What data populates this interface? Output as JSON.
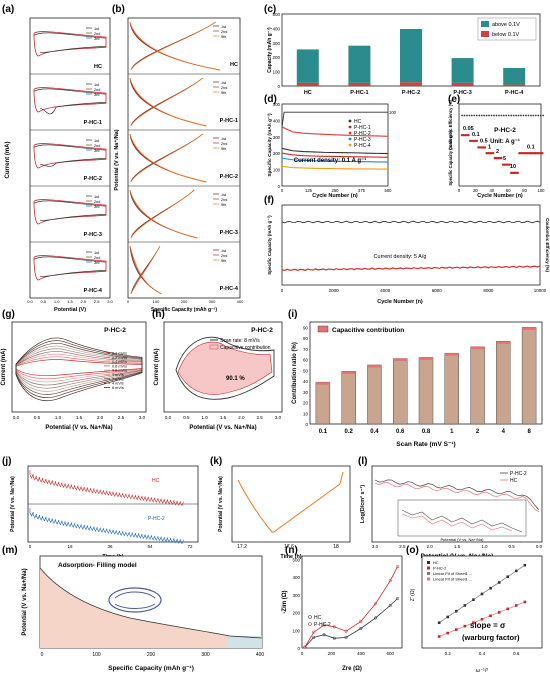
{
  "panel_labels": {
    "a": "(a)",
    "b": "(b)",
    "c": "(c)",
    "d": "(d)",
    "e": "(e)",
    "f": "(f)",
    "g": "(g)",
    "h": "(h)",
    "i": "(i)",
    "j": "(j)",
    "k": "(k)",
    "l": "(l)",
    "m": "(m)",
    "n": "(n)",
    "o": "(o)"
  },
  "samples": [
    "HC",
    "P-HC-1",
    "P-HC-2",
    "P-HC-3",
    "P-HC-4"
  ],
  "cycle_legend": [
    "1st",
    "2nd",
    "3rd"
  ],
  "cycle_legend_b": [
    "1st",
    "2nd",
    "5th"
  ],
  "colors": {
    "c1": "#333333",
    "c2": "#c62828",
    "c3": "#1565c0",
    "teal": "#2a8c8c",
    "red": "#d04040",
    "tan": "#c9a58f"
  },
  "a": {
    "ylabel": "Current (mA)",
    "xlabel": "Potential (V)",
    "xticks": [
      "0.0",
      "0.5",
      "1.0",
      "1.5",
      "2.0",
      "2.5",
      "3.0"
    ]
  },
  "b": {
    "ylabel": "Potential (V vs. Na⁺/Na)",
    "xlabel": "Specific Capacity (mAh g⁻¹)",
    "xticks": [
      "0",
      "100",
      "200",
      "300",
      "400"
    ]
  },
  "c": {
    "ylabel": "Capacity (mAh g⁻¹)",
    "legend": [
      "above 0.1V",
      "below 0.1V"
    ],
    "yticks": [
      "0",
      "100",
      "200",
      "300",
      "400",
      "500"
    ]
  },
  "d": {
    "xlabel": "Cycle Number (n)",
    "ylabel": "Specific Capacity (mAh g⁻¹)",
    "ylabel2": "Coulombic Efficiency (%)",
    "annotation": "Current density: 0.1 A g⁻¹",
    "xticks": [
      "0",
      "125",
      "250",
      "375",
      "500"
    ],
    "yticks": [
      "0",
      "100",
      "200",
      "300",
      "400",
      "500"
    ],
    "y2top": "100"
  },
  "e": {
    "title": "P-HC-2",
    "unit": "Unit: A g⁻¹",
    "xlabel": "Cycle Number (n)",
    "ylabel": "Specific Capacity (mAh g⁻¹)",
    "ylabel2": "Coulombic Efficiency (%)",
    "rate_labels": [
      "0.05",
      "0.1",
      "0.5",
      "1",
      "2",
      "5",
      "10",
      "0.1"
    ],
    "xticks": [
      "0",
      "20",
      "40",
      "60",
      "80",
      "100"
    ]
  },
  "f": {
    "annotation": "Current density: 5 A/g",
    "xlabel": "Cycle Number (n)",
    "ylabel": "Specific Capacity (mAh g⁻¹)",
    "ylabel2": "Coulombic Efficiency (%)",
    "xticks": [
      "0",
      "2000",
      "4000",
      "6000",
      "8000",
      "10000"
    ]
  },
  "g": {
    "title": "P-HC-2",
    "xlabel": "Potential (V vs. Na+/Na)",
    "ylabel": "Current (mA)",
    "legend": [
      "0.1 mV/s",
      "0.2 mV/s",
      "0.4 mV/s",
      "0.6 mV/s",
      "0.8 mV/s",
      "1 mV/s",
      "2 mV/s",
      "4 mV/s",
      "8 mV/s"
    ],
    "xticks": [
      "0.0",
      "0.5",
      "1.0",
      "1.5",
      "2.0",
      "2.5",
      "3.0"
    ],
    "yticks": [
      "1.0",
      "0.5",
      "0.0",
      "-0.5",
      "-1.0",
      "-1.5"
    ]
  },
  "h": {
    "title": "P-HC-2",
    "xlabel": "Potential (V vs. Na+/Na)",
    "ylabel": "Current (mA)",
    "legend": [
      "Scan rate: 8 mV/s",
      "Capacitive contribution"
    ],
    "annotation": "90.1 %",
    "xticks": [
      "0.0",
      "0.5",
      "1.0",
      "1.5",
      "2.0",
      "2.5",
      "3.0"
    ]
  },
  "i": {
    "legend": "Capacitive contribution",
    "xlabel": "Scan Rate (mV S⁻¹)",
    "ylabel": "Contribution ratio (%)",
    "yticks": [
      "0",
      "10",
      "20",
      "30",
      "40",
      "50",
      "60",
      "70",
      "80",
      "90"
    ]
  },
  "j": {
    "xlabel": "Time (h)",
    "ylabel": "Potential (V vs. Na⁺/Na)",
    "labels": [
      "HC",
      "P-HC-2"
    ],
    "xticks": [
      "0",
      "18",
      "36",
      "54",
      "72"
    ]
  },
  "k": {
    "xlabel": "Time (h)",
    "ylabel": "Potential (V vs. Na⁺/Na)",
    "xticks": [
      "17.2",
      "17.6",
      "18"
    ]
  },
  "l": {
    "xlabel": "Potential (V vs. Na+/Na)",
    "ylabel": "Log(D/cm² s⁻¹)",
    "legend": [
      "P-HC-2",
      "HC"
    ],
    "xticks": [
      "3.0",
      "2.5",
      "2.0",
      "1.5",
      "1.0",
      "0.5",
      "0.0"
    ],
    "inset_xlabel": "Potential (V vs. Na+/Na)"
  },
  "m": {
    "title": "Adsorption- Filling model",
    "xlabel": "Specific Capacity (mAh g⁻¹)",
    "ylabel": "Potential (V vs. Na+/Na)",
    "xticks": [
      "0",
      "100",
      "200",
      "300",
      "400"
    ]
  },
  "n": {
    "xlabel": "Zre (Ω)",
    "ylabel": "-Zim (Ω)",
    "legend": [
      "HC",
      "P-HC-2"
    ],
    "xticks": [
      "0",
      "200",
      "400",
      "600"
    ],
    "yticks": [
      "0",
      "100",
      "200",
      "300",
      "400",
      "500"
    ]
  },
  "o": {
    "xlabel": "ω⁻¹/²",
    "ylabel": "Z' (Ω)",
    "legend": [
      "HC",
      "P-HC-2",
      "Linear Fit of Sheet1 ...",
      "Linear Fit of Sheet1 ..."
    ],
    "annotation1": "slope = σ",
    "annotation2": "(warburg factor)",
    "xticks": [
      "0.2",
      "0.4",
      "0.6"
    ]
  },
  "chart_data": [
    {
      "panel": "c",
      "type": "bar",
      "categories": [
        "HC",
        "P-HC-1",
        "P-HC-2",
        "P-HC-3",
        "P-HC-4"
      ],
      "series": [
        {
          "name": "below 0.1V",
          "values": [
            22,
            22,
            26,
            22,
            10
          ]
        },
        {
          "name": "above 0.1V",
          "values": [
            232,
            258,
            370,
            172,
            115
          ]
        }
      ],
      "ylabel": "Capacity (mAh g⁻¹)",
      "ylim": [
        0,
        500
      ]
    },
    {
      "panel": "d",
      "type": "line",
      "x": [
        0,
        50,
        100,
        150,
        200,
        250,
        300,
        350,
        400,
        450,
        500
      ],
      "series": [
        {
          "name": "HC",
          "values": [
            230,
            215,
            210,
            208,
            205,
            204,
            203,
            202,
            200,
            199,
            198
          ]
        },
        {
          "name": "P-HC-1",
          "values": [
            200,
            190,
            185,
            183,
            181,
            180,
            179,
            178,
            177,
            176,
            175
          ]
        },
        {
          "name": "P-HC-2",
          "values": [
            360,
            330,
            322,
            318,
            315,
            312,
            310,
            308,
            306,
            305,
            303
          ]
        },
        {
          "name": "P-HC-3",
          "values": [
            170,
            160,
            156,
            154,
            152,
            151,
            150,
            149,
            148,
            147,
            146
          ]
        },
        {
          "name": "P-HC-4",
          "values": [
            120,
            112,
            110,
            108,
            107,
            106,
            105,
            104,
            104,
            103,
            103
          ]
        }
      ],
      "xlabel": "Cycle Number (n)",
      "ylabel": "Specific Capacity (mAh g⁻¹)",
      "ylim": [
        0,
        500
      ],
      "xlim": [
        0,
        500
      ]
    },
    {
      "panel": "i",
      "type": "bar",
      "categories": [
        "0.1",
        "0.2",
        "0.4",
        "0.6",
        "0.8",
        "1",
        "2",
        "4",
        "8"
      ],
      "series": [
        {
          "name": "Capacitive contribution",
          "values": [
            39,
            49,
            55,
            61,
            62,
            66,
            72,
            77,
            90
          ]
        }
      ],
      "xlabel": "Scan Rate (mV S⁻¹)",
      "ylabel": "Contribution ratio (%)",
      "ylim": [
        0,
        95
      ]
    },
    {
      "panel": "o",
      "type": "scatter",
      "x": [
        0.15,
        0.2,
        0.25,
        0.3,
        0.35,
        0.4,
        0.45,
        0.5,
        0.55,
        0.6,
        0.65
      ],
      "series": [
        {
          "name": "HC",
          "values": [
            420,
            470,
            520,
            570,
            620,
            670,
            720,
            770,
            820,
            870,
            920
          ]
        },
        {
          "name": "P-HC-2",
          "values": [
            300,
            330,
            360,
            390,
            420,
            450,
            480,
            510,
            540,
            570,
            600
          ]
        }
      ],
      "xlabel": "ω⁻¹/²",
      "ylabel": "Z' (Ω)"
    },
    {
      "panel": "n",
      "type": "line",
      "x": [
        20,
        80,
        150,
        220,
        300,
        400,
        500,
        600,
        650
      ],
      "series": [
        {
          "name": "HC",
          "values": [
            5,
            60,
            75,
            55,
            60,
            110,
            170,
            240,
            280
          ]
        },
        {
          "name": "P-HC-2",
          "values": [
            5,
            90,
            130,
            120,
            95,
            150,
            250,
            380,
            460
          ]
        }
      ],
      "xlabel": "Zre (Ω)",
      "ylabel": "-Zim (Ω)",
      "xlim": [
        0,
        680
      ],
      "ylim": [
        0,
        520
      ]
    }
  ]
}
